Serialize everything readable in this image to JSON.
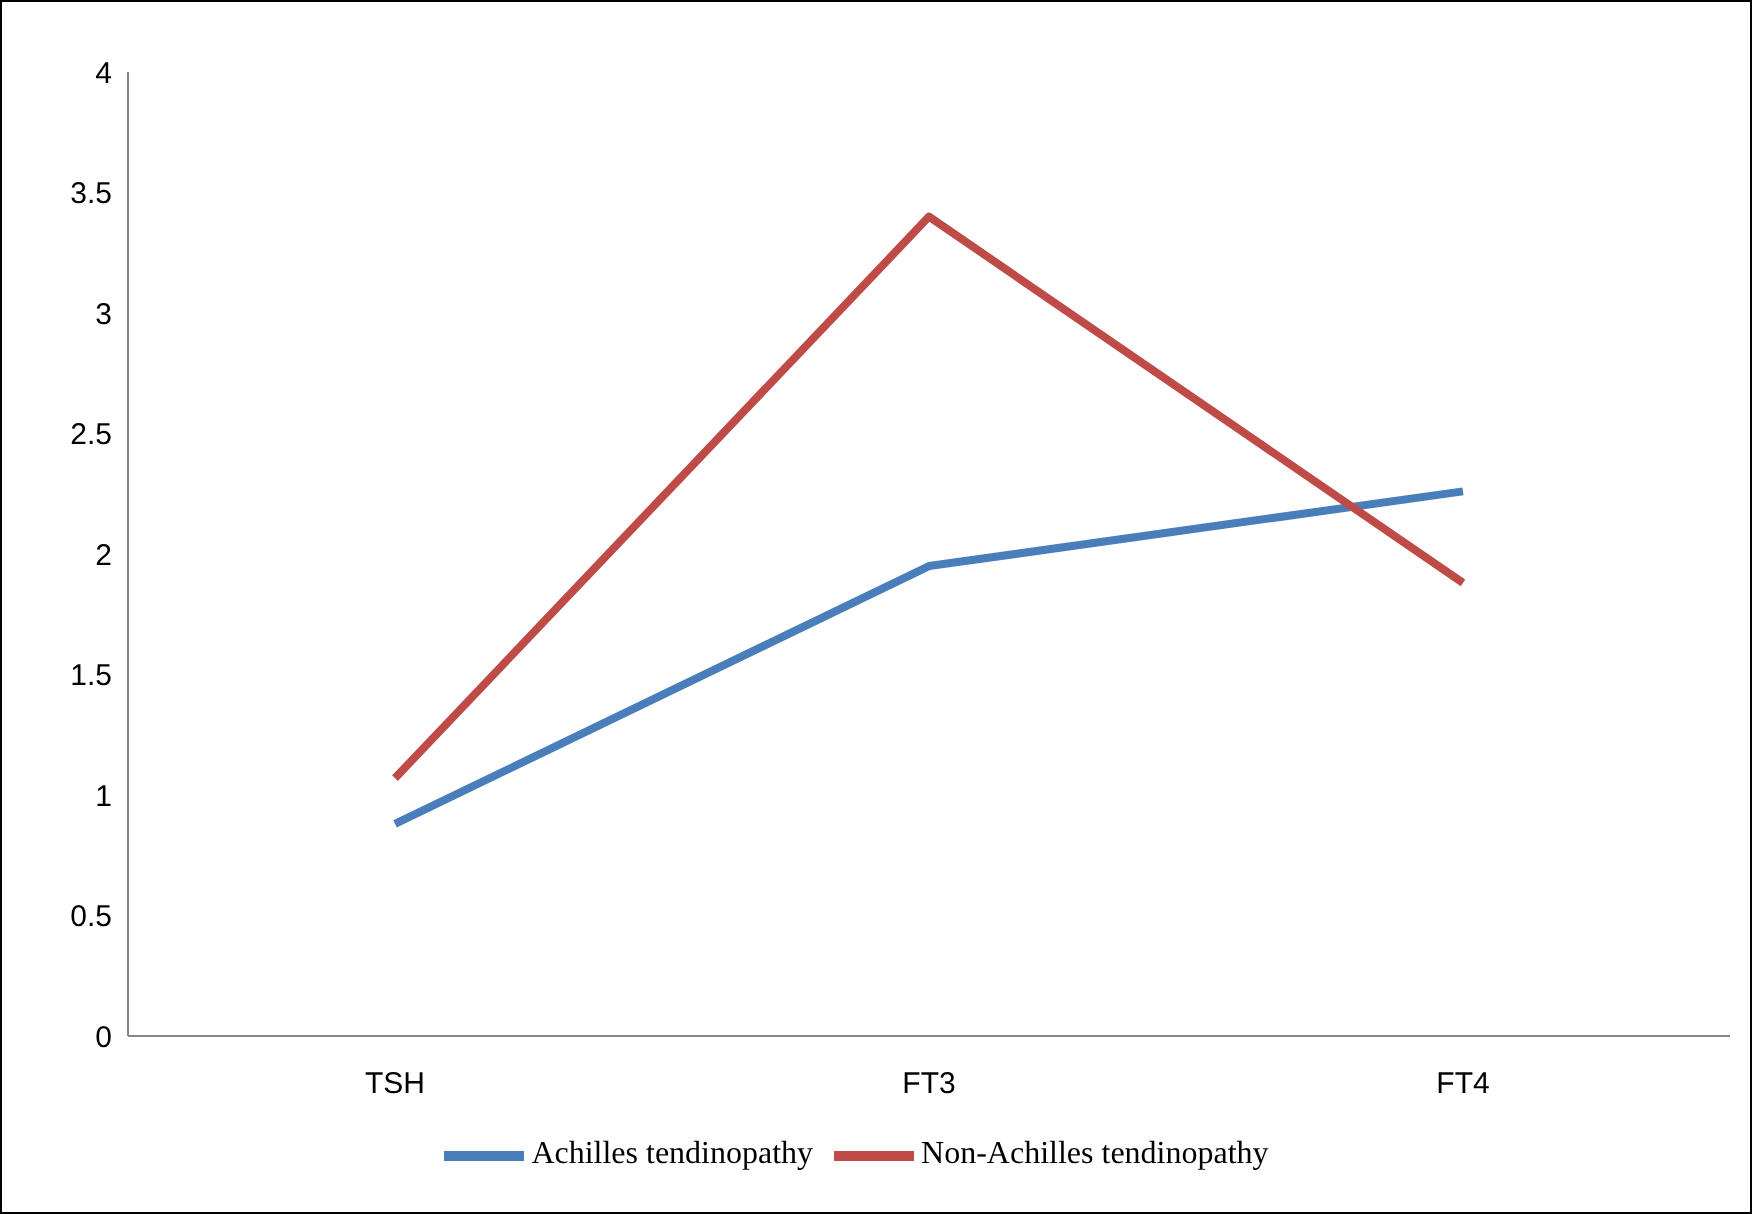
{
  "chart_data": {
    "type": "line",
    "categories": [
      "TSH",
      "FT3",
      "FT4"
    ],
    "series": [
      {
        "name": "Achilles tendinopathy",
        "color": "#4a7ebb",
        "values": [
          0.88,
          1.95,
          2.26
        ]
      },
      {
        "name": "Non-Achilles tendinopathy",
        "color": "#be4b48",
        "values": [
          1.07,
          3.4,
          1.88
        ]
      }
    ],
    "ylim": [
      0,
      4
    ],
    "yticks": [
      0,
      0.5,
      1,
      1.5,
      2,
      2.5,
      3,
      3.5,
      4
    ],
    "grid": false,
    "legend": "bottom",
    "marker": "none",
    "line_style": "solid"
  }
}
